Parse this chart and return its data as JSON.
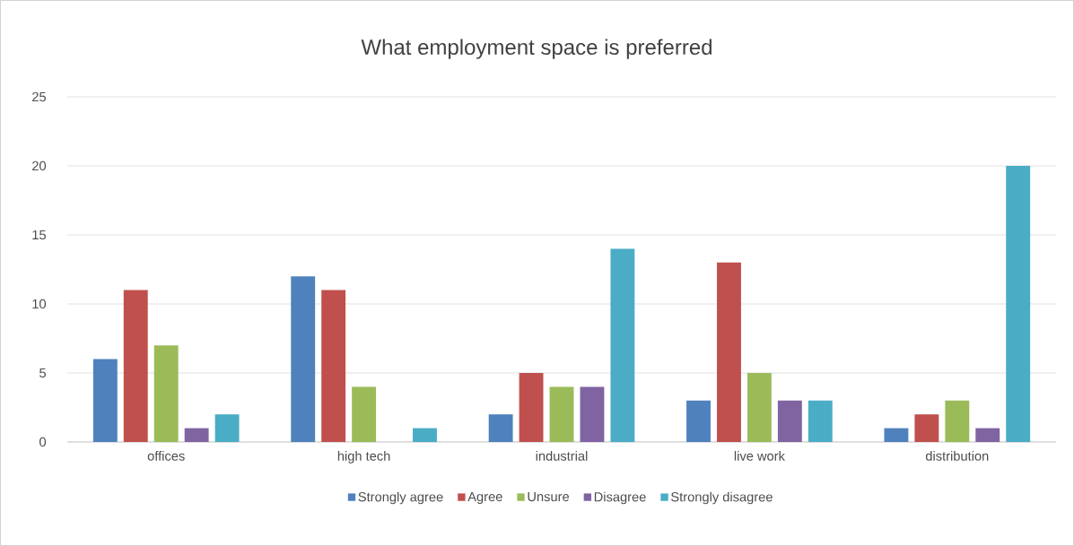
{
  "chart_data": {
    "type": "bar",
    "title": "What employment space is preferred",
    "categories": [
      "offices",
      "high tech",
      "industrial",
      "live work",
      "distribution"
    ],
    "series": [
      {
        "name": "Strongly agree",
        "color": "#4f81bd",
        "values": [
          6,
          12,
          2,
          3,
          1
        ]
      },
      {
        "name": "Agree",
        "color": "#c0504d",
        "values": [
          11,
          11,
          5,
          13,
          2
        ]
      },
      {
        "name": "Unsure",
        "color": "#9bbb59",
        "values": [
          7,
          4,
          4,
          5,
          3
        ]
      },
      {
        "name": "Disagree",
        "color": "#8064a2",
        "values": [
          1,
          0,
          4,
          3,
          1
        ]
      },
      {
        "name": "Strongly disagree",
        "color": "#4bacc6",
        "values": [
          2,
          1,
          14,
          3,
          20
        ]
      }
    ],
    "ylim": [
      0,
      25
    ],
    "yticks": [
      0,
      5,
      10,
      15,
      20,
      25
    ],
    "grid": "y",
    "legend": "bottom"
  }
}
